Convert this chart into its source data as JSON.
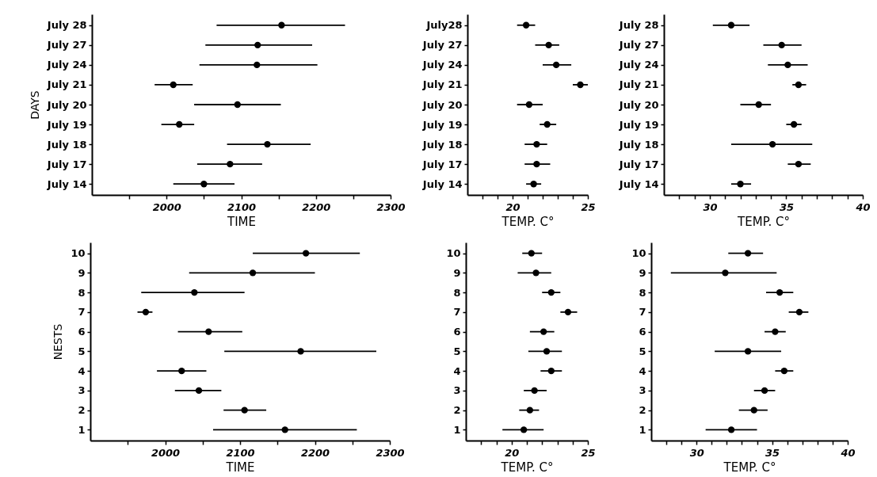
{
  "chart_data": [
    {
      "type": "scatter",
      "orientation": "horizontal",
      "ylabel": "DAYS",
      "xlabel": "TIME",
      "color": "#000000",
      "marker": "circle",
      "grid": false,
      "categories": [
        "July 28",
        "July 27",
        "July 24",
        "July 21",
        "July 20",
        "July 19",
        "July 18",
        "July 17",
        "July 14"
      ],
      "values": [
        2154,
        2122,
        2121,
        2009,
        2095,
        2017,
        2135,
        2085,
        2050
      ],
      "errors": [
        [
          2067,
          2239
        ],
        [
          2052,
          2195
        ],
        [
          2044,
          2202
        ],
        [
          1984,
          2035
        ],
        [
          2037,
          2153
        ],
        [
          1993,
          2037
        ],
        [
          2081,
          2193
        ],
        [
          2041,
          2128
        ],
        [
          2009,
          2091
        ]
      ],
      "xlim": [
        1900,
        2300
      ],
      "xticks": [
        {
          "value": 1950,
          "label": null
        },
        2000,
        {
          "value": 2050,
          "label": null
        },
        2100,
        {
          "value": 2150,
          "label": null
        },
        2200,
        {
          "value": 2250,
          "label": null
        },
        2300
      ]
    },
    {
      "type": "scatter",
      "orientation": "horizontal",
      "xlabel": "TEMP. C°",
      "color": "#000000",
      "marker": "circle",
      "grid": false,
      "categories": [
        "July28",
        "July 27",
        "July 24",
        "July 21",
        "July 20",
        "July 19",
        "July 18",
        "July 17",
        "July 14"
      ],
      "values": [
        20.9,
        22.4,
        22.9,
        24.5,
        21.1,
        22.3,
        21.6,
        21.6,
        21.4
      ],
      "errors": [
        [
          20.3,
          21.5
        ],
        [
          21.5,
          23.1
        ],
        [
          22.0,
          23.9
        ],
        [
          24.0,
          25.0
        ],
        [
          20.3,
          22.0
        ],
        [
          21.8,
          22.9
        ],
        [
          20.8,
          22.3
        ],
        [
          20.8,
          22.5
        ],
        [
          20.9,
          21.9
        ]
      ],
      "xlim": [
        17,
        25
      ],
      "xticks": [
        {
          "value": 18,
          "label": null
        },
        {
          "value": 19,
          "label": null
        },
        20,
        {
          "value": 21,
          "label": null
        },
        {
          "value": 22,
          "label": null
        },
        {
          "value": 23,
          "label": null
        },
        {
          "value": 24,
          "label": null
        },
        25
      ]
    },
    {
      "type": "scatter",
      "orientation": "horizontal",
      "xlabel": "TEMP. C°",
      "color": "#000000",
      "marker": "circle",
      "grid": false,
      "categories": [
        "July 28",
        "July 27",
        "July 24",
        "July 21",
        "July 20",
        "July 19",
        "July 18",
        "July 17",
        "July 14"
      ],
      "values": [
        31.4,
        34.7,
        35.1,
        35.8,
        33.2,
        35.5,
        34.1,
        35.8,
        32.0
      ],
      "errors": [
        [
          30.2,
          32.6
        ],
        [
          33.5,
          36.0
        ],
        [
          33.8,
          36.4
        ],
        [
          35.4,
          36.3
        ],
        [
          32.0,
          34.0
        ],
        [
          35.0,
          36.0
        ],
        [
          31.4,
          36.7
        ],
        [
          35.1,
          36.6
        ],
        [
          31.4,
          32.7
        ]
      ],
      "xlim": [
        27,
        40
      ],
      "xticks": [
        {
          "value": 28,
          "label": null
        },
        {
          "value": 29,
          "label": null
        },
        30,
        {
          "value": 31,
          "label": null
        },
        {
          "value": 32,
          "label": null
        },
        {
          "value": 33,
          "label": null
        },
        {
          "value": 34,
          "label": null
        },
        35,
        {
          "value": 36,
          "label": null
        },
        {
          "value": 37,
          "label": null
        },
        {
          "value": 38,
          "label": null
        },
        {
          "value": 39,
          "label": null
        },
        40
      ]
    },
    {
      "type": "scatter",
      "orientation": "horizontal",
      "ylabel": "NESTS",
      "xlabel": "TIME",
      "color": "#000000",
      "marker": "circle",
      "grid": false,
      "categories": [
        "10",
        "9",
        "8",
        "7",
        "6",
        "5",
        "4",
        "3",
        "2",
        "1"
      ],
      "values": [
        2188,
        2117,
        2039,
        1974,
        2058,
        2181,
        2022,
        2045,
        2106,
        2160
      ],
      "errors": [
        [
          2117,
          2260
        ],
        [
          2032,
          2200
        ],
        [
          1968,
          2106
        ],
        [
          1963,
          1983
        ],
        [
          2017,
          2103
        ],
        [
          2079,
          2282
        ],
        [
          1989,
          2055
        ],
        [
          2013,
          2075
        ],
        [
          2078,
          2135
        ],
        [
          2064,
          2256
        ]
      ],
      "xlim": [
        1900,
        2300
      ],
      "xticks": [
        {
          "value": 1950,
          "label": null
        },
        2000,
        {
          "value": 2050,
          "label": null
        },
        2100,
        {
          "value": 2150,
          "label": null
        },
        2200,
        {
          "value": 2250,
          "label": null
        },
        2300
      ]
    },
    {
      "type": "scatter",
      "orientation": "horizontal",
      "xlabel": "TEMP. C°",
      "color": "#000000",
      "marker": "circle",
      "grid": false,
      "categories": [
        "10",
        "9",
        "8",
        "7",
        "6",
        "5",
        "4",
        "3",
        "2",
        "1"
      ],
      "values": [
        21.3,
        21.6,
        22.6,
        23.7,
        22.1,
        22.3,
        22.6,
        21.5,
        21.2,
        20.8
      ],
      "errors": [
        [
          20.7,
          22.0
        ],
        [
          20.4,
          22.6
        ],
        [
          22.0,
          23.2
        ],
        [
          23.2,
          24.3
        ],
        [
          21.2,
          22.8
        ],
        [
          21.1,
          23.3
        ],
        [
          21.9,
          23.3
        ],
        [
          20.8,
          22.3
        ],
        [
          20.5,
          21.8
        ],
        [
          19.4,
          22.1
        ]
      ],
      "xlim": [
        17,
        25
      ],
      "xticks": [
        {
          "value": 18,
          "label": null
        },
        {
          "value": 19,
          "label": null
        },
        20,
        {
          "value": 21,
          "label": null
        },
        {
          "value": 22,
          "label": null
        },
        {
          "value": 23,
          "label": null
        },
        {
          "value": 24,
          "label": null
        },
        25
      ]
    },
    {
      "type": "scatter",
      "orientation": "horizontal",
      "xlabel": "TEMP. C°",
      "color": "#000000",
      "marker": "circle",
      "grid": false,
      "categories": [
        "10",
        "9",
        "8",
        "7",
        "6",
        "5",
        "4",
        "3",
        "2",
        "1"
      ],
      "values": [
        33.4,
        31.9,
        35.5,
        36.8,
        35.2,
        33.4,
        35.8,
        34.5,
        33.8,
        32.3
      ],
      "errors": [
        [
          32.1,
          34.4
        ],
        [
          28.3,
          35.3
        ],
        [
          34.6,
          36.4
        ],
        [
          36.1,
          37.4
        ],
        [
          34.5,
          35.9
        ],
        [
          31.2,
          35.6
        ],
        [
          35.2,
          36.4
        ],
        [
          33.8,
          35.2
        ],
        [
          32.8,
          34.7
        ],
        [
          30.6,
          34.0
        ]
      ],
      "xlim": [
        27,
        40
      ],
      "xticks": [
        {
          "value": 28,
          "label": null
        },
        {
          "value": 29,
          "label": null
        },
        30,
        {
          "value": 31,
          "label": null
        },
        {
          "value": 32,
          "label": null
        },
        {
          "value": 33,
          "label": null
        },
        {
          "value": 34,
          "label": null
        },
        35,
        {
          "value": 36,
          "label": null
        },
        {
          "value": 37,
          "label": null
        },
        {
          "value": 38,
          "label": null
        },
        {
          "value": 39,
          "label": null
        },
        40
      ]
    }
  ]
}
